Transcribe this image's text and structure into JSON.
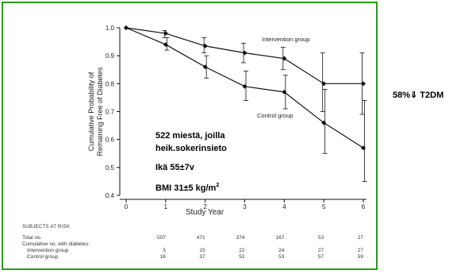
{
  "chart_data": {
    "type": "line",
    "x": [
      0,
      1,
      2,
      3,
      4,
      5,
      6
    ],
    "xlabel": "Study Year",
    "ylabel_lines": [
      "Cumulative Probability of",
      "Remaining Free of Diabetes"
    ],
    "ylim": [
      0.4,
      1.0
    ],
    "yticks": [
      "0.4",
      "0.5",
      "0.6",
      "0.7",
      "0.8",
      "0.9",
      "1.0"
    ],
    "xticks": [
      "0",
      "1",
      "2",
      "3",
      "4",
      "5",
      "6"
    ],
    "grid": false,
    "series": [
      {
        "name": "Intervention group",
        "values": [
          1.0,
          0.98,
          0.935,
          0.91,
          0.89,
          0.8,
          0.8
        ],
        "ci_low": [
          1.0,
          0.965,
          0.91,
          0.875,
          0.85,
          0.7,
          0.69
        ],
        "ci_high": [
          1.0,
          0.99,
          0.965,
          0.945,
          0.93,
          0.91,
          0.91
        ],
        "color": "#111111"
      },
      {
        "name": "Control group",
        "values": [
          1.0,
          0.94,
          0.86,
          0.79,
          0.77,
          0.66,
          0.57
        ],
        "ci_low": [
          1.0,
          0.92,
          0.82,
          0.74,
          0.71,
          0.55,
          0.45
        ],
        "ci_high": [
          1.0,
          0.965,
          0.9,
          0.845,
          0.83,
          0.78,
          0.74
        ],
        "color": "#111111"
      }
    ],
    "annotations": {
      "line1": "522 miestä, joilla",
      "line2": "heik.sokerinsieto",
      "line3": "Ikä 55±7v",
      "line4_prefix": "BMI 31±5 kg/m",
      "line4_sup": "2"
    },
    "risk_table": {
      "title": "Subjects at Risk",
      "rows": [
        {
          "label": "Total no.",
          "values": [
            "507",
            "471",
            "374",
            "167",
            "53",
            "27"
          ]
        },
        {
          "label": "Cumulative no. with diabetes:",
          "values": []
        },
        {
          "label": "Intervention group",
          "values": [
            "5",
            "15",
            "22",
            "24",
            "27",
            "27"
          ]
        },
        {
          "label": "Control group",
          "values": [
            "16",
            "37",
            "51",
            "53",
            "57",
            "59"
          ]
        }
      ]
    }
  },
  "side_note": {
    "text": "58%⇓  T2DM"
  },
  "colors": {
    "frame": "#2e9a1e",
    "ink": "#111111"
  }
}
